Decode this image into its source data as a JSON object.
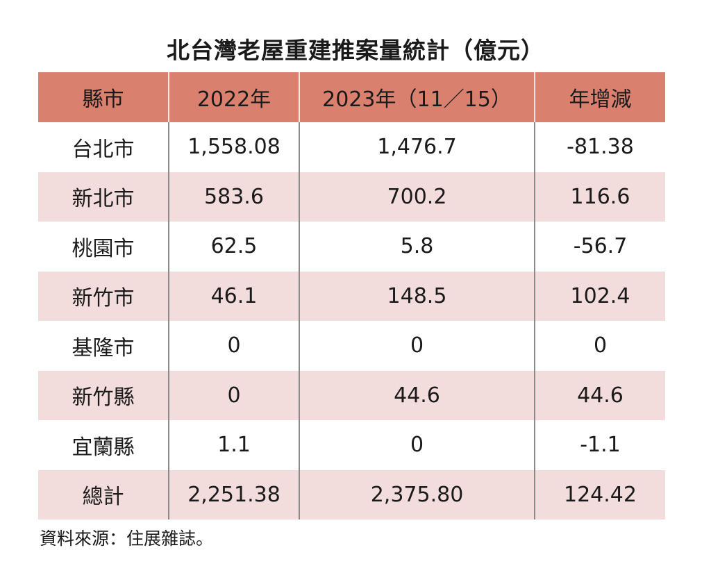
{
  "chart_data": {
    "type": "table",
    "title": "北台灣老屋重建推案量統計（億元）",
    "columns": [
      "縣市",
      "2022年",
      "2023年（11／15）",
      "年增減"
    ],
    "rows": [
      [
        "台北市",
        "1,558.08",
        "1,476.7",
        "-81.38"
      ],
      [
        "新北市",
        "583.6",
        "700.2",
        "116.6"
      ],
      [
        "桃園市",
        "62.5",
        "5.8",
        "-56.7"
      ],
      [
        "新竹市",
        "46.1",
        "148.5",
        "102.4"
      ],
      [
        "基隆市",
        "0",
        "0",
        "0"
      ],
      [
        "新竹縣",
        "0",
        "44.6",
        "44.6"
      ],
      [
        "宜蘭縣",
        "1.1",
        "0",
        "-1.1"
      ],
      [
        "總計",
        "2,251.38",
        "2,375.80",
        "124.42"
      ]
    ],
    "source": "資料來源：住展雜誌。"
  },
  "colors": {
    "header_bg": "#d9806f",
    "stripe_bg": "#f2dcdc",
    "divider": "#8a8a8a"
  }
}
